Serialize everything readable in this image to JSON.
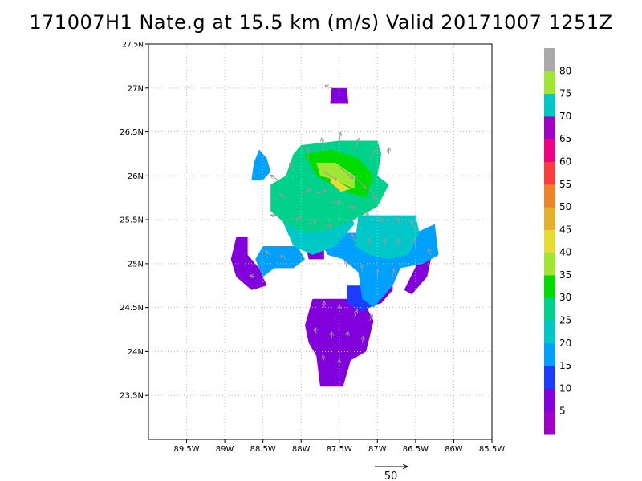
{
  "title": "171007H1 Nate.g at 15.5 km (m/s) Valid 20171007 1251Z",
  "chart_data": {
    "type": "heatmap",
    "title": "171007H1 Nate.g at 15.5 km (m/s) Valid 20171007 1251Z",
    "variable": "wind speed",
    "units": "m/s",
    "x_axis": {
      "range": [
        -90.0,
        -85.5
      ],
      "ticks": [
        -89.5,
        -89,
        -88.5,
        -88,
        -87.5,
        -87,
        -86.5,
        -86,
        -85.5
      ],
      "tick_labels": [
        "89.5W",
        "89W",
        "88.5W",
        "88W",
        "87.5W",
        "87W",
        "86.5W",
        "86W",
        "85.5W"
      ]
    },
    "y_axis": {
      "range": [
        23.0,
        27.5
      ],
      "ticks": [
        23.5,
        24,
        24.5,
        25,
        25.5,
        26,
        26.5,
        27,
        27.5
      ],
      "tick_labels": [
        "23.5N",
        "24N",
        "24.5N",
        "25N",
        "25.5N",
        "26N",
        "26.5N",
        "27N",
        "27.5N"
      ]
    },
    "grid": true,
    "colorbar": {
      "labels": [
        "5",
        "10",
        "15",
        "20",
        "25",
        "30",
        "35",
        "40",
        "45",
        "50",
        "55",
        "60",
        "65",
        "70",
        "75",
        "80"
      ],
      "colors": [
        "#a000c8",
        "#8200dc",
        "#1e3cff",
        "#00a0ff",
        "#00c8c8",
        "#00d28c",
        "#00dc00",
        "#a0e632",
        "#e6dc32",
        "#e6af2d",
        "#f08228",
        "#fa3c3c",
        "#f00082",
        "#a000c8",
        "#00c8c8",
        "#a0e632",
        "#aaaaaa"
      ]
    },
    "regions": [
      {
        "speed": 5,
        "polygon": [
          [
            -87.85,
            24.6
          ],
          [
            -87.2,
            24.6
          ],
          [
            -87.05,
            24.35
          ],
          [
            -87.15,
            24.0
          ],
          [
            -87.35,
            23.9
          ],
          [
            -87.45,
            23.6
          ],
          [
            -87.75,
            23.6
          ],
          [
            -87.8,
            23.95
          ],
          [
            -87.9,
            24.1
          ],
          [
            -87.95,
            24.3
          ]
        ]
      },
      {
        "speed": 5,
        "polygon": [
          [
            -87.6,
            27.0
          ],
          [
            -87.4,
            27.0
          ],
          [
            -87.38,
            26.82
          ],
          [
            -87.62,
            26.82
          ]
        ]
      },
      {
        "speed": 5,
        "polygon": [
          [
            -88.85,
            25.3
          ],
          [
            -88.7,
            25.3
          ],
          [
            -88.7,
            25.1
          ],
          [
            -88.55,
            24.95
          ],
          [
            -88.45,
            24.75
          ],
          [
            -88.65,
            24.7
          ],
          [
            -88.85,
            24.85
          ],
          [
            -88.92,
            25.05
          ]
        ]
      },
      {
        "speed": 5,
        "polygon": [
          [
            -87.1,
            24.85
          ],
          [
            -86.95,
            24.95
          ],
          [
            -86.8,
            24.95
          ],
          [
            -86.8,
            24.7
          ],
          [
            -86.95,
            24.55
          ],
          [
            -87.15,
            24.5
          ],
          [
            -87.3,
            24.6
          ]
        ]
      },
      {
        "speed": 5,
        "polygon": [
          [
            -86.45,
            25.05
          ],
          [
            -86.3,
            25.05
          ],
          [
            -86.35,
            24.85
          ],
          [
            -86.55,
            24.65
          ],
          [
            -86.65,
            24.7
          ]
        ]
      },
      {
        "speed": 5,
        "polygon": [
          [
            -87.95,
            25.25
          ],
          [
            -87.7,
            25.25
          ],
          [
            -87.7,
            25.05
          ],
          [
            -87.9,
            25.05
          ]
        ]
      },
      {
        "speed": 10,
        "polygon": [
          [
            -87.4,
            24.75
          ],
          [
            -87.1,
            24.75
          ],
          [
            -87.0,
            24.55
          ],
          [
            -87.2,
            24.45
          ],
          [
            -87.4,
            24.55
          ]
        ]
      },
      {
        "speed": 15,
        "polygon": [
          [
            -88.5,
            25.2
          ],
          [
            -88.05,
            25.2
          ],
          [
            -87.95,
            25.05
          ],
          [
            -88.1,
            24.95
          ],
          [
            -88.35,
            24.95
          ],
          [
            -88.5,
            24.85
          ],
          [
            -88.6,
            25.05
          ]
        ]
      },
      {
        "speed": 15,
        "polygon": [
          [
            -87.55,
            25.35
          ],
          [
            -86.5,
            25.35
          ],
          [
            -86.25,
            25.45
          ],
          [
            -86.2,
            25.1
          ],
          [
            -86.4,
            25.0
          ],
          [
            -86.7,
            24.95
          ],
          [
            -86.8,
            24.75
          ],
          [
            -87.05,
            24.5
          ],
          [
            -87.2,
            24.6
          ],
          [
            -87.25,
            24.9
          ],
          [
            -87.45,
            25.05
          ],
          [
            -87.65,
            25.1
          ],
          [
            -87.75,
            25.25
          ]
        ]
      },
      {
        "speed": 15,
        "polygon": [
          [
            -88.55,
            26.3
          ],
          [
            -88.45,
            26.2
          ],
          [
            -88.4,
            26.05
          ],
          [
            -88.5,
            25.95
          ],
          [
            -88.65,
            25.95
          ],
          [
            -88.62,
            26.15
          ]
        ]
      },
      {
        "speed": 20,
        "polygon": [
          [
            -87.25,
            25.55
          ],
          [
            -86.5,
            25.55
          ],
          [
            -86.45,
            25.35
          ],
          [
            -86.6,
            25.1
          ],
          [
            -86.85,
            25.05
          ],
          [
            -87.1,
            25.1
          ],
          [
            -87.3,
            25.2
          ]
        ]
      },
      {
        "speed": 20,
        "polygon": [
          [
            -88.15,
            25.85
          ],
          [
            -87.5,
            25.8
          ],
          [
            -87.3,
            25.45
          ],
          [
            -87.55,
            25.2
          ],
          [
            -87.85,
            25.1
          ],
          [
            -88.1,
            25.2
          ],
          [
            -88.25,
            25.5
          ]
        ]
      },
      {
        "speed": 25,
        "polygon": [
          [
            -88.0,
            26.35
          ],
          [
            -87.5,
            26.4
          ],
          [
            -87.0,
            26.4
          ],
          [
            -86.95,
            26.25
          ],
          [
            -87.0,
            26.0
          ],
          [
            -86.85,
            25.9
          ],
          [
            -87.0,
            25.65
          ],
          [
            -87.2,
            25.55
          ],
          [
            -87.55,
            25.4
          ],
          [
            -87.95,
            25.35
          ],
          [
            -88.2,
            25.45
          ],
          [
            -88.4,
            25.6
          ],
          [
            -88.4,
            25.9
          ],
          [
            -88.2,
            26.0
          ],
          [
            -88.1,
            26.25
          ]
        ]
      },
      {
        "speed": 30,
        "polygon": [
          [
            -87.95,
            26.25
          ],
          [
            -87.6,
            26.3
          ],
          [
            -87.25,
            26.2
          ],
          [
            -87.05,
            26.0
          ],
          [
            -87.15,
            25.75
          ],
          [
            -87.35,
            25.8
          ],
          [
            -87.6,
            25.9
          ],
          [
            -87.8,
            26.0
          ]
        ]
      },
      {
        "speed": 35,
        "polygon": [
          [
            -87.8,
            26.15
          ],
          [
            -87.55,
            26.15
          ],
          [
            -87.3,
            26.0
          ],
          [
            -87.3,
            25.85
          ],
          [
            -87.55,
            25.95
          ],
          [
            -87.75,
            26.0
          ]
        ]
      },
      {
        "speed": 40,
        "polygon": [
          [
            -87.6,
            26.0
          ],
          [
            -87.45,
            25.9
          ],
          [
            -87.35,
            25.85
          ],
          [
            -87.48,
            25.82
          ],
          [
            -87.62,
            25.93
          ]
        ]
      }
    ],
    "vectors": [
      {
        "lon": -88.3,
        "lat": 25.95,
        "u": -12,
        "v": 8
      },
      {
        "lon": -88.1,
        "lat": 26.05,
        "u": -6,
        "v": 14
      },
      {
        "lon": -87.9,
        "lat": 26.2,
        "u": -2,
        "v": 18
      },
      {
        "lon": -87.7,
        "lat": 26.3,
        "u": -4,
        "v": 18
      },
      {
        "lon": -87.5,
        "lat": 26.35,
        "u": 2,
        "v": 20
      },
      {
        "lon": -87.3,
        "lat": 26.3,
        "u": 8,
        "v": 18
      },
      {
        "lon": -87.1,
        "lat": 26.2,
        "u": 10,
        "v": 14
      },
      {
        "lon": -87.7,
        "lat": 26.05,
        "u": 20,
        "v": -14
      },
      {
        "lon": -87.5,
        "lat": 26.1,
        "u": 22,
        "v": -18
      },
      {
        "lon": -87.3,
        "lat": 26.0,
        "u": 18,
        "v": -20
      },
      {
        "lon": -87.1,
        "lat": 25.85,
        "u": 10,
        "v": -16
      },
      {
        "lon": -88.2,
        "lat": 25.75,
        "u": -10,
        "v": 6
      },
      {
        "lon": -88.0,
        "lat": 25.8,
        "u": 16,
        "v": 6
      },
      {
        "lon": -87.8,
        "lat": 25.8,
        "u": 16,
        "v": 4
      },
      {
        "lon": -87.6,
        "lat": 25.7,
        "u": 14,
        "v": 0
      },
      {
        "lon": -87.4,
        "lat": 25.65,
        "u": 14,
        "v": -2
      },
      {
        "lon": -87.2,
        "lat": 25.6,
        "u": 10,
        "v": -6
      },
      {
        "lon": -88.3,
        "lat": 25.55,
        "u": -12,
        "v": 0
      },
      {
        "lon": -88.1,
        "lat": 25.5,
        "u": 12,
        "v": 4
      },
      {
        "lon": -87.9,
        "lat": 25.45,
        "u": 12,
        "v": 4
      },
      {
        "lon": -87.7,
        "lat": 25.4,
        "u": 12,
        "v": 6
      },
      {
        "lon": -86.9,
        "lat": 25.45,
        "u": -10,
        "v": 10
      },
      {
        "lon": -86.7,
        "lat": 25.45,
        "u": -8,
        "v": 10
      },
      {
        "lon": -86.5,
        "lat": 25.4,
        "u": -8,
        "v": 12
      },
      {
        "lon": -87.3,
        "lat": 25.25,
        "u": -4,
        "v": 12
      },
      {
        "lon": -87.1,
        "lat": 25.2,
        "u": -2,
        "v": 12
      },
      {
        "lon": -86.9,
        "lat": 25.2,
        "u": 0,
        "v": 12
      },
      {
        "lon": -86.7,
        "lat": 25.2,
        "u": -4,
        "v": 12
      },
      {
        "lon": -86.5,
        "lat": 25.2,
        "u": -2,
        "v": 12
      },
      {
        "lon": -86.3,
        "lat": 25.1,
        "u": -4,
        "v": 10
      },
      {
        "lon": -88.4,
        "lat": 25.1,
        "u": -8,
        "v": 6
      },
      {
        "lon": -88.2,
        "lat": 25.05,
        "u": -8,
        "v": 6
      },
      {
        "lon": -88.6,
        "lat": 24.85,
        "u": -8,
        "v": 2
      },
      {
        "lon": -87.4,
        "lat": 24.95,
        "u": -2,
        "v": 12
      },
      {
        "lon": -87.2,
        "lat": 24.9,
        "u": 0,
        "v": 12
      },
      {
        "lon": -87.0,
        "lat": 24.85,
        "u": 0,
        "v": 12
      },
      {
        "lon": -86.8,
        "lat": 24.85,
        "u": 2,
        "v": 12
      },
      {
        "lon": -87.7,
        "lat": 24.5,
        "u": 0,
        "v": 10
      },
      {
        "lon": -87.5,
        "lat": 24.45,
        "u": 0,
        "v": 10
      },
      {
        "lon": -87.3,
        "lat": 24.4,
        "u": 4,
        "v": 10
      },
      {
        "lon": -87.1,
        "lat": 24.35,
        "u": 4,
        "v": 10
      },
      {
        "lon": -87.8,
        "lat": 24.2,
        "u": -2,
        "v": 10
      },
      {
        "lon": -87.6,
        "lat": 24.15,
        "u": 0,
        "v": 10
      },
      {
        "lon": -87.4,
        "lat": 24.15,
        "u": 2,
        "v": 10
      },
      {
        "lon": -87.2,
        "lat": 24.1,
        "u": 2,
        "v": 10
      },
      {
        "lon": -87.7,
        "lat": 23.9,
        "u": -2,
        "v": 8
      },
      {
        "lon": -87.5,
        "lat": 23.85,
        "u": 0,
        "v": 8
      },
      {
        "lon": -87.6,
        "lat": 27.0,
        "u": -10,
        "v": 4
      },
      {
        "lon": -86.85,
        "lat": 26.25,
        "u": 0,
        "v": 10
      }
    ],
    "reference_vector": {
      "label": "50",
      "speed": 50
    }
  }
}
